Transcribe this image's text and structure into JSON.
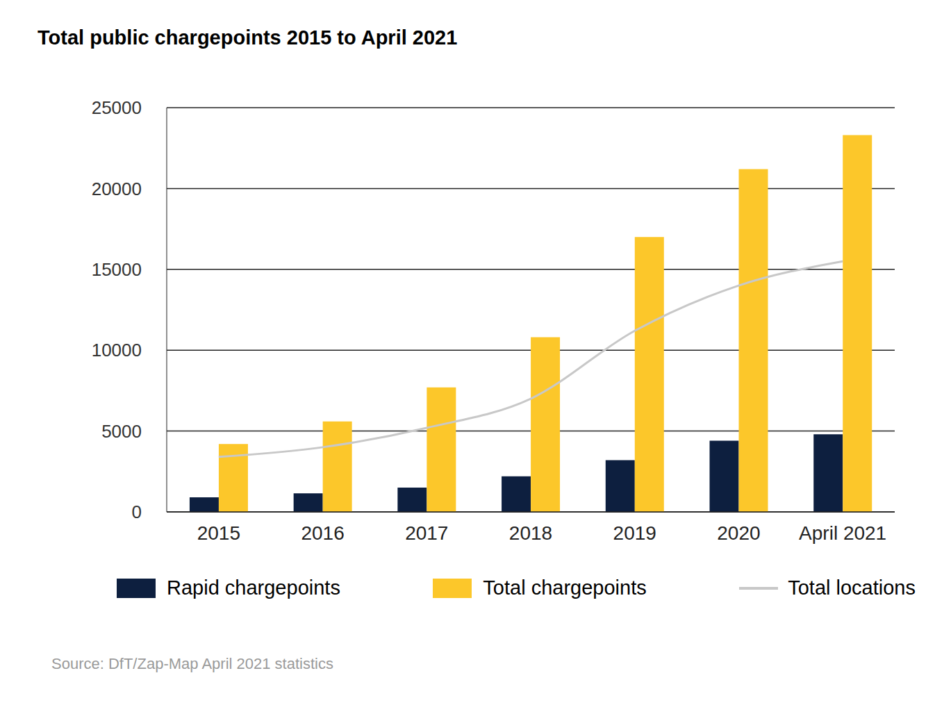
{
  "chart_data": {
    "type": "bar",
    "title": "Total public chargepoints 2015 to April 2021",
    "source": "Source: DfT/Zap-Map April 2021 statistics",
    "categories": [
      "2015",
      "2016",
      "2017",
      "2018",
      "2019",
      "2020",
      "April 2021"
    ],
    "series": [
      {
        "name": "Rapid chargepoints",
        "type": "bar",
        "color": "#0d1f3f",
        "values": [
          900,
          1150,
          1500,
          2200,
          3200,
          4400,
          4800
        ]
      },
      {
        "name": "Total chargepoints",
        "type": "bar",
        "color": "#fcc72a",
        "values": [
          4200,
          5600,
          7700,
          10800,
          17000,
          21200,
          23300
        ]
      },
      {
        "name": "Total locations",
        "type": "line",
        "color": "#c8c8c8",
        "values": [
          3400,
          4000,
          5200,
          7000,
          11200,
          14000,
          15500
        ]
      }
    ],
    "ylim": [
      0,
      25000
    ],
    "yticks": [
      0,
      5000,
      10000,
      15000,
      20000,
      25000
    ],
    "grid": true,
    "legend": "bottom"
  }
}
